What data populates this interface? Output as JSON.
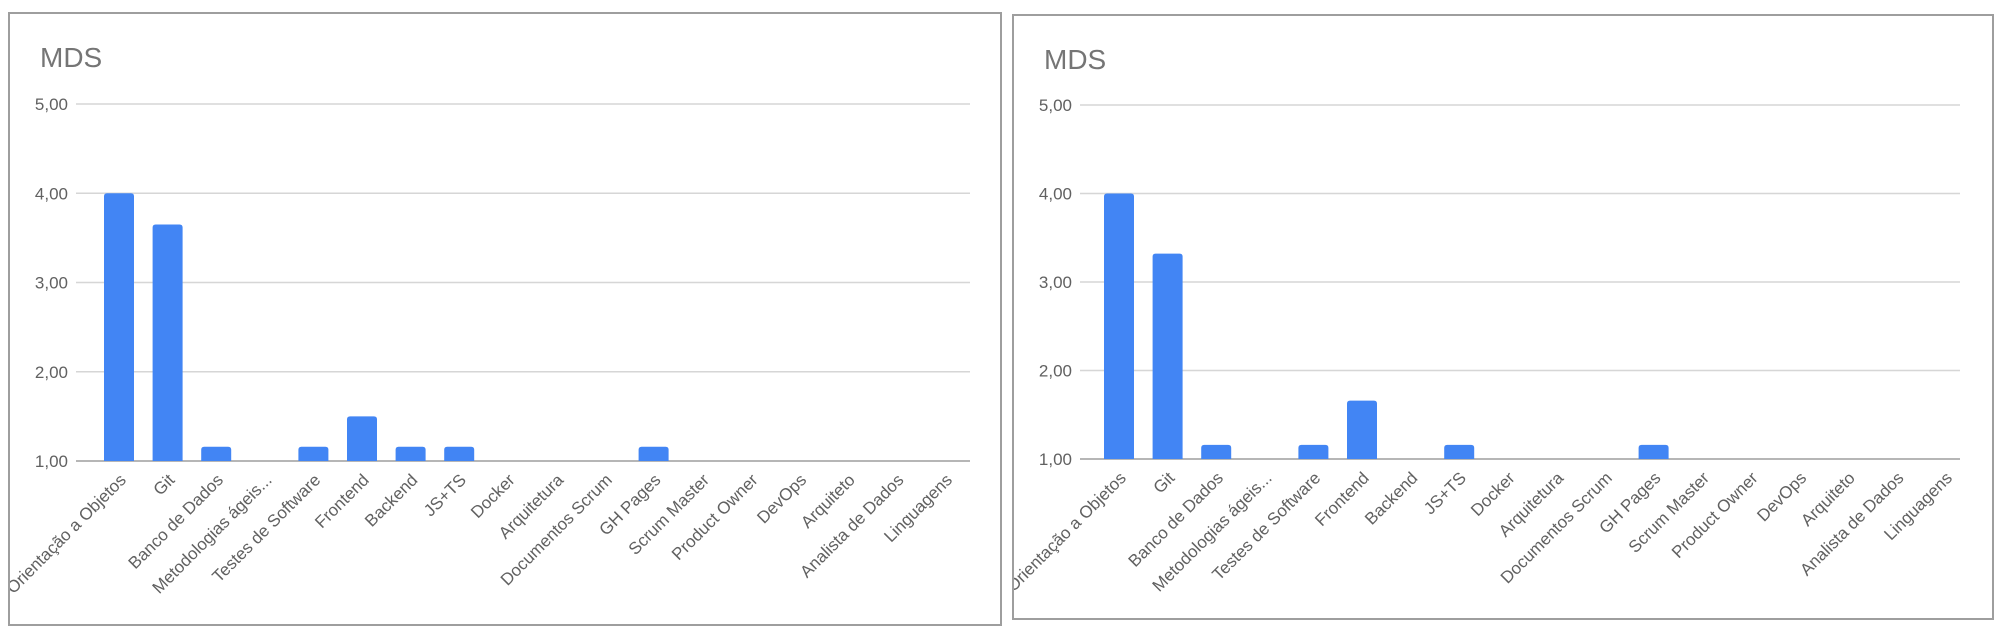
{
  "colors": {
    "bar": "#4285f4",
    "grid": "#d6d6d6",
    "text": "#616161"
  },
  "chart_data": [
    {
      "type": "bar",
      "title": "MDS",
      "ylim": [
        1,
        5
      ],
      "yticks": [
        "1,00",
        "2,00",
        "3,00",
        "4,00",
        "5,00"
      ],
      "grid": true,
      "categories": [
        "Orientação a Objetos",
        "Git",
        "Banco de Dados",
        "Metodologias ágeis...",
        "Testes de Software",
        "Frontend",
        "Backend",
        "JS+TS",
        "Docker",
        "Arquitetura",
        "Documentos Scrum",
        "GH Pages",
        "Scrum Master",
        "Product Owner",
        "DevOps",
        "Arquiteto",
        "Analista de Dados",
        "Linguagens"
      ],
      "values": [
        4.0,
        3.65,
        1.16,
        1.0,
        1.16,
        1.5,
        1.16,
        1.16,
        1.0,
        1.0,
        1.0,
        1.16,
        1.0,
        1.0,
        1.0,
        1.0,
        1.0,
        1.0
      ]
    },
    {
      "type": "bar",
      "title": "MDS",
      "ylim": [
        1,
        5
      ],
      "yticks": [
        "1,00",
        "2,00",
        "3,00",
        "4,00",
        "5,00"
      ],
      "grid": true,
      "categories": [
        "Orientação a Objetos",
        "Git",
        "Banco de Dados",
        "Metodologias ágeis...",
        "Testes de Software",
        "Frontend",
        "Backend",
        "JS+TS",
        "Docker",
        "Arquitetura",
        "Documentos Scrum",
        "GH Pages",
        "Scrum Master",
        "Product Owner",
        "DevOps",
        "Arquiteto",
        "Analista de Dados",
        "Linguagens"
      ],
      "values": [
        4.0,
        3.32,
        1.16,
        1.0,
        1.16,
        1.66,
        1.0,
        1.16,
        1.0,
        1.0,
        1.0,
        1.16,
        1.0,
        1.0,
        1.0,
        1.0,
        1.0,
        1.0
      ]
    }
  ]
}
